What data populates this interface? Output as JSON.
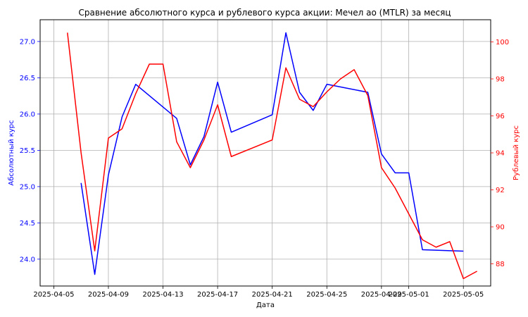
{
  "chart_data": {
    "type": "line",
    "title": "Сравнение абсолютного курса и рублевого курса акции: Мечел ао (MTLR) за месяц",
    "xlabel": "Дата",
    "ylabel_left": "Абсолютный курс",
    "ylabel_right": "Рублевый курс",
    "grid": true,
    "x_ticks": [
      "2025-04-05",
      "2025-04-09",
      "2025-04-13",
      "2025-04-17",
      "2025-04-21",
      "2025-04-25",
      "2025-04-29",
      "2025-05-01",
      "2025-05-05"
    ],
    "y_left_ticks": [
      "24.0",
      "24.5",
      "25.0",
      "25.5",
      "26.0",
      "26.5",
      "27.0"
    ],
    "y_right_ticks": [
      "88",
      "90",
      "92",
      "94",
      "96",
      "98",
      "100"
    ],
    "ylim_left": [
      23.63,
      27.3
    ],
    "ylim_right": [
      86.8,
      101.2
    ],
    "xlim": [
      "2025-04-04",
      "2025-05-07"
    ],
    "colors": {
      "left_axis": "#0000ff",
      "right_axis": "#ff0000"
    },
    "series": [
      {
        "axis": "left",
        "color": "#0000ff",
        "points": [
          {
            "x": "2025-04-07",
            "y": 25.05
          },
          {
            "x": "2025-04-08",
            "y": 23.79
          },
          {
            "x": "2025-04-09",
            "y": 25.16
          },
          {
            "x": "2025-04-10",
            "y": 25.96
          },
          {
            "x": "2025-04-11",
            "y": 26.41
          },
          {
            "x": "2025-04-14",
            "y": 25.94
          },
          {
            "x": "2025-04-15",
            "y": 25.3
          },
          {
            "x": "2025-04-16",
            "y": 25.69
          },
          {
            "x": "2025-04-17",
            "y": 26.44
          },
          {
            "x": "2025-04-18",
            "y": 25.75
          },
          {
            "x": "2025-04-21",
            "y": 25.99
          },
          {
            "x": "2025-04-22",
            "y": 27.12
          },
          {
            "x": "2025-04-23",
            "y": 26.3
          },
          {
            "x": "2025-04-24",
            "y": 26.05
          },
          {
            "x": "2025-04-25",
            "y": 26.41
          },
          {
            "x": "2025-04-28",
            "y": 26.3
          },
          {
            "x": "2025-04-29",
            "y": 25.45
          },
          {
            "x": "2025-04-30",
            "y": 25.19
          },
          {
            "x": "2025-05-01",
            "y": 25.19
          },
          {
            "x": "2025-05-02",
            "y": 24.13
          },
          {
            "x": "2025-05-05",
            "y": 24.11
          }
        ]
      },
      {
        "axis": "right",
        "color": "#ff0000",
        "points": [
          {
            "x": "2025-04-06",
            "y": 100.5
          },
          {
            "x": "2025-04-07",
            "y": 94.0
          },
          {
            "x": "2025-04-08",
            "y": 88.7
          },
          {
            "x": "2025-04-09",
            "y": 94.8
          },
          {
            "x": "2025-04-10",
            "y": 95.3
          },
          {
            "x": "2025-04-11",
            "y": 97.2
          },
          {
            "x": "2025-04-12",
            "y": 98.8
          },
          {
            "x": "2025-04-13",
            "y": 98.8
          },
          {
            "x": "2025-04-14",
            "y": 94.6
          },
          {
            "x": "2025-04-15",
            "y": 93.2
          },
          {
            "x": "2025-04-16",
            "y": 94.7
          },
          {
            "x": "2025-04-17",
            "y": 96.6
          },
          {
            "x": "2025-04-18",
            "y": 93.8
          },
          {
            "x": "2025-04-21",
            "y": 94.7
          },
          {
            "x": "2025-04-22",
            "y": 98.6
          },
          {
            "x": "2025-04-23",
            "y": 96.9
          },
          {
            "x": "2025-04-24",
            "y": 96.5
          },
          {
            "x": "2025-04-25",
            "y": 97.3
          },
          {
            "x": "2025-04-26",
            "y": 98.0
          },
          {
            "x": "2025-04-27",
            "y": 98.5
          },
          {
            "x": "2025-04-28",
            "y": 97.1
          },
          {
            "x": "2025-04-29",
            "y": 93.2
          },
          {
            "x": "2025-04-30",
            "y": 92.1
          },
          {
            "x": "2025-05-01",
            "y": 90.7
          },
          {
            "x": "2025-05-02",
            "y": 89.3
          },
          {
            "x": "2025-05-03",
            "y": 88.9
          },
          {
            "x": "2025-05-04",
            "y": 89.2
          },
          {
            "x": "2025-05-05",
            "y": 87.2
          },
          {
            "x": "2025-05-06",
            "y": 87.6
          }
        ]
      }
    ]
  }
}
